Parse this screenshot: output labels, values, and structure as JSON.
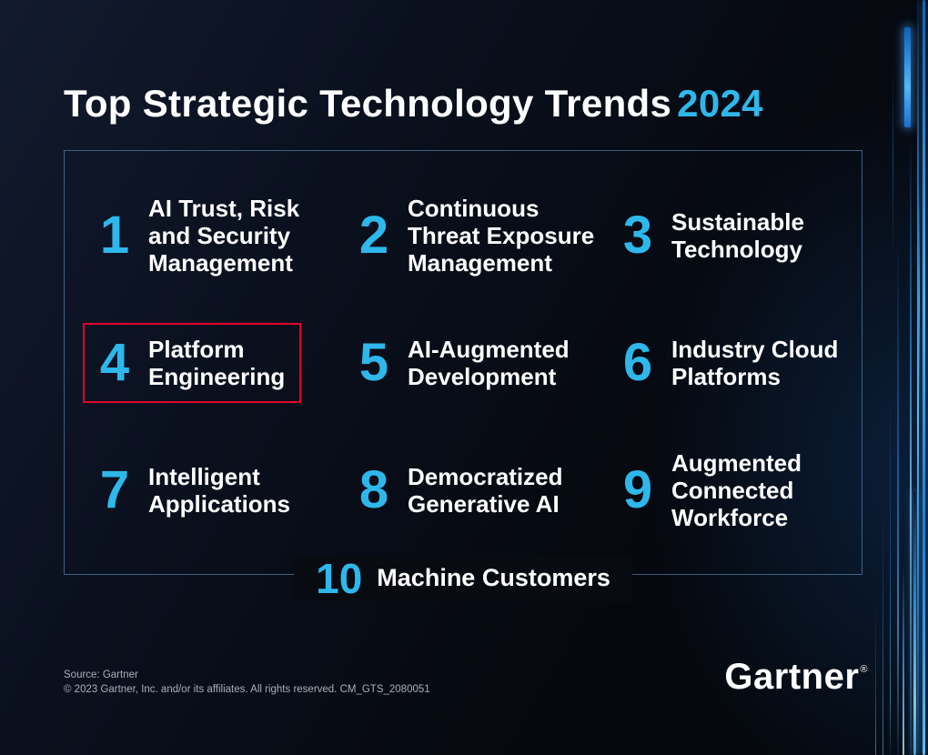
{
  "title": {
    "text": "Top Strategic Technology Trends",
    "year": "2024"
  },
  "trends": [
    {
      "number": "1",
      "label": "AI Trust, Risk and Security Management",
      "highlighted": false
    },
    {
      "number": "2",
      "label": "Continuous Threat Exposure Management",
      "highlighted": false
    },
    {
      "number": "3",
      "label": "Sustainable Technology",
      "highlighted": false
    },
    {
      "number": "4",
      "label": "Platform Engineering",
      "highlighted": true
    },
    {
      "number": "5",
      "label": "AI-Augmented Development",
      "highlighted": false
    },
    {
      "number": "6",
      "label": "Industry Cloud Platforms",
      "highlighted": false
    },
    {
      "number": "7",
      "label": "Intelligent Applications",
      "highlighted": false
    },
    {
      "number": "8",
      "label": "Democratized Generative AI",
      "highlighted": false
    },
    {
      "number": "9",
      "label": "Augmented Connected Workforce",
      "highlighted": false
    },
    {
      "number": "10",
      "label": "Machine Customers",
      "highlighted": false
    }
  ],
  "footer": {
    "source": "Source: Gartner",
    "copyright": "© 2023 Gartner, Inc. and/or its affiliates. All rights reserved. CM_GTS_2080051",
    "logo": "Gartner",
    "registered": "®"
  },
  "colors": {
    "accent_blue": "#2eb7ea",
    "highlight_red": "#e4002b",
    "background": "#070a11"
  }
}
